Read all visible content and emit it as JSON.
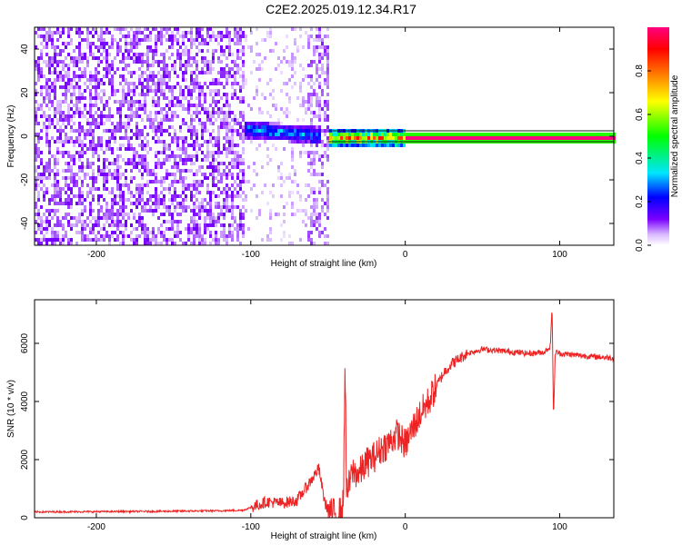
{
  "title": "C2E2.2025.019.12.34.R17",
  "chart_data": [
    {
      "type": "heatmap",
      "xlabel": "Height of straight line (km)",
      "ylabel": "Frequency (Hz)",
      "xlim": [
        -240,
        135
      ],
      "ylim": [
        -50,
        50
      ],
      "xticks": [
        -200,
        -100,
        0,
        100
      ],
      "yticks": [
        -40,
        -20,
        0,
        20,
        40
      ],
      "colorbar": {
        "label": "Normalized spectral amplitude",
        "ticks": [
          0.0,
          0.2,
          0.4,
          0.6,
          0.8
        ],
        "range": [
          0,
          1
        ],
        "colors": [
          "#ffffff",
          "#d9b8ff",
          "#7a00ff",
          "#0000ff",
          "#00e5ff",
          "#00ff00",
          "#ffff00",
          "#ff8000",
          "#ff0000",
          "#ff0080"
        ]
      },
      "regions": [
        {
          "x_range": [
            -240,
            -105
          ],
          "y_range": [
            -50,
            50
          ],
          "amplitude": 0.12,
          "pattern": "noise"
        },
        {
          "x_range": [
            -105,
            -55
          ],
          "y_range": [
            -50,
            50
          ],
          "amplitude": 0.05,
          "pattern": "sparse"
        },
        {
          "x_range": [
            -65,
            -50
          ],
          "y_range": [
            -50,
            50
          ],
          "amplitude": 0.1,
          "pattern": "vertical-band"
        },
        {
          "x_range": [
            -105,
            -55
          ],
          "center_freq": [
            4,
            1
          ],
          "amplitude": 0.35,
          "pattern": "signal"
        },
        {
          "x_range": [
            -50,
            0
          ],
          "center_freq": [
            0,
            0
          ],
          "amplitude": 0.85,
          "pattern": "signal"
        },
        {
          "x_range": [
            0,
            135
          ],
          "center_freq": [
            0,
            0
          ],
          "amplitude": 1.0,
          "pattern": "carrier"
        }
      ]
    },
    {
      "type": "line",
      "xlabel": "Height of straight line (km)",
      "ylabel": "SNR (10 * v/v)",
      "xlim": [
        -240,
        135
      ],
      "ylim": [
        0,
        7500
      ],
      "xticks": [
        -200,
        -100,
        0,
        100
      ],
      "yticks": [
        0,
        2000,
        4000,
        6000
      ],
      "color": "#ee2222",
      "series": [
        {
          "x": [
            -240,
            -200,
            -160,
            -120,
            -105,
            -100,
            -90,
            -80,
            -70,
            -62,
            -56,
            -52,
            -48,
            -45,
            -42,
            -40,
            -39,
            -38,
            -36,
            -34,
            -30,
            -25,
            -20,
            -15,
            -10,
            -5,
            0,
            5,
            10,
            15,
            20,
            25,
            30,
            40,
            50,
            60,
            70,
            80,
            90,
            94,
            95,
            96,
            97,
            98,
            100,
            110,
            120,
            135
          ],
          "y": [
            200,
            210,
            220,
            240,
            260,
            350,
            550,
            500,
            600,
            1200,
            1700,
            500,
            150,
            120,
            200,
            500,
            5700,
            800,
            1200,
            1600,
            1500,
            1900,
            2100,
            2400,
            2600,
            2900,
            2500,
            3100,
            3600,
            4000,
            4500,
            5000,
            5300,
            5650,
            5800,
            5750,
            5700,
            5650,
            5700,
            5900,
            7400,
            3300,
            5600,
            5700,
            5650,
            5600,
            5550,
            5500
          ]
        }
      ]
    }
  ]
}
